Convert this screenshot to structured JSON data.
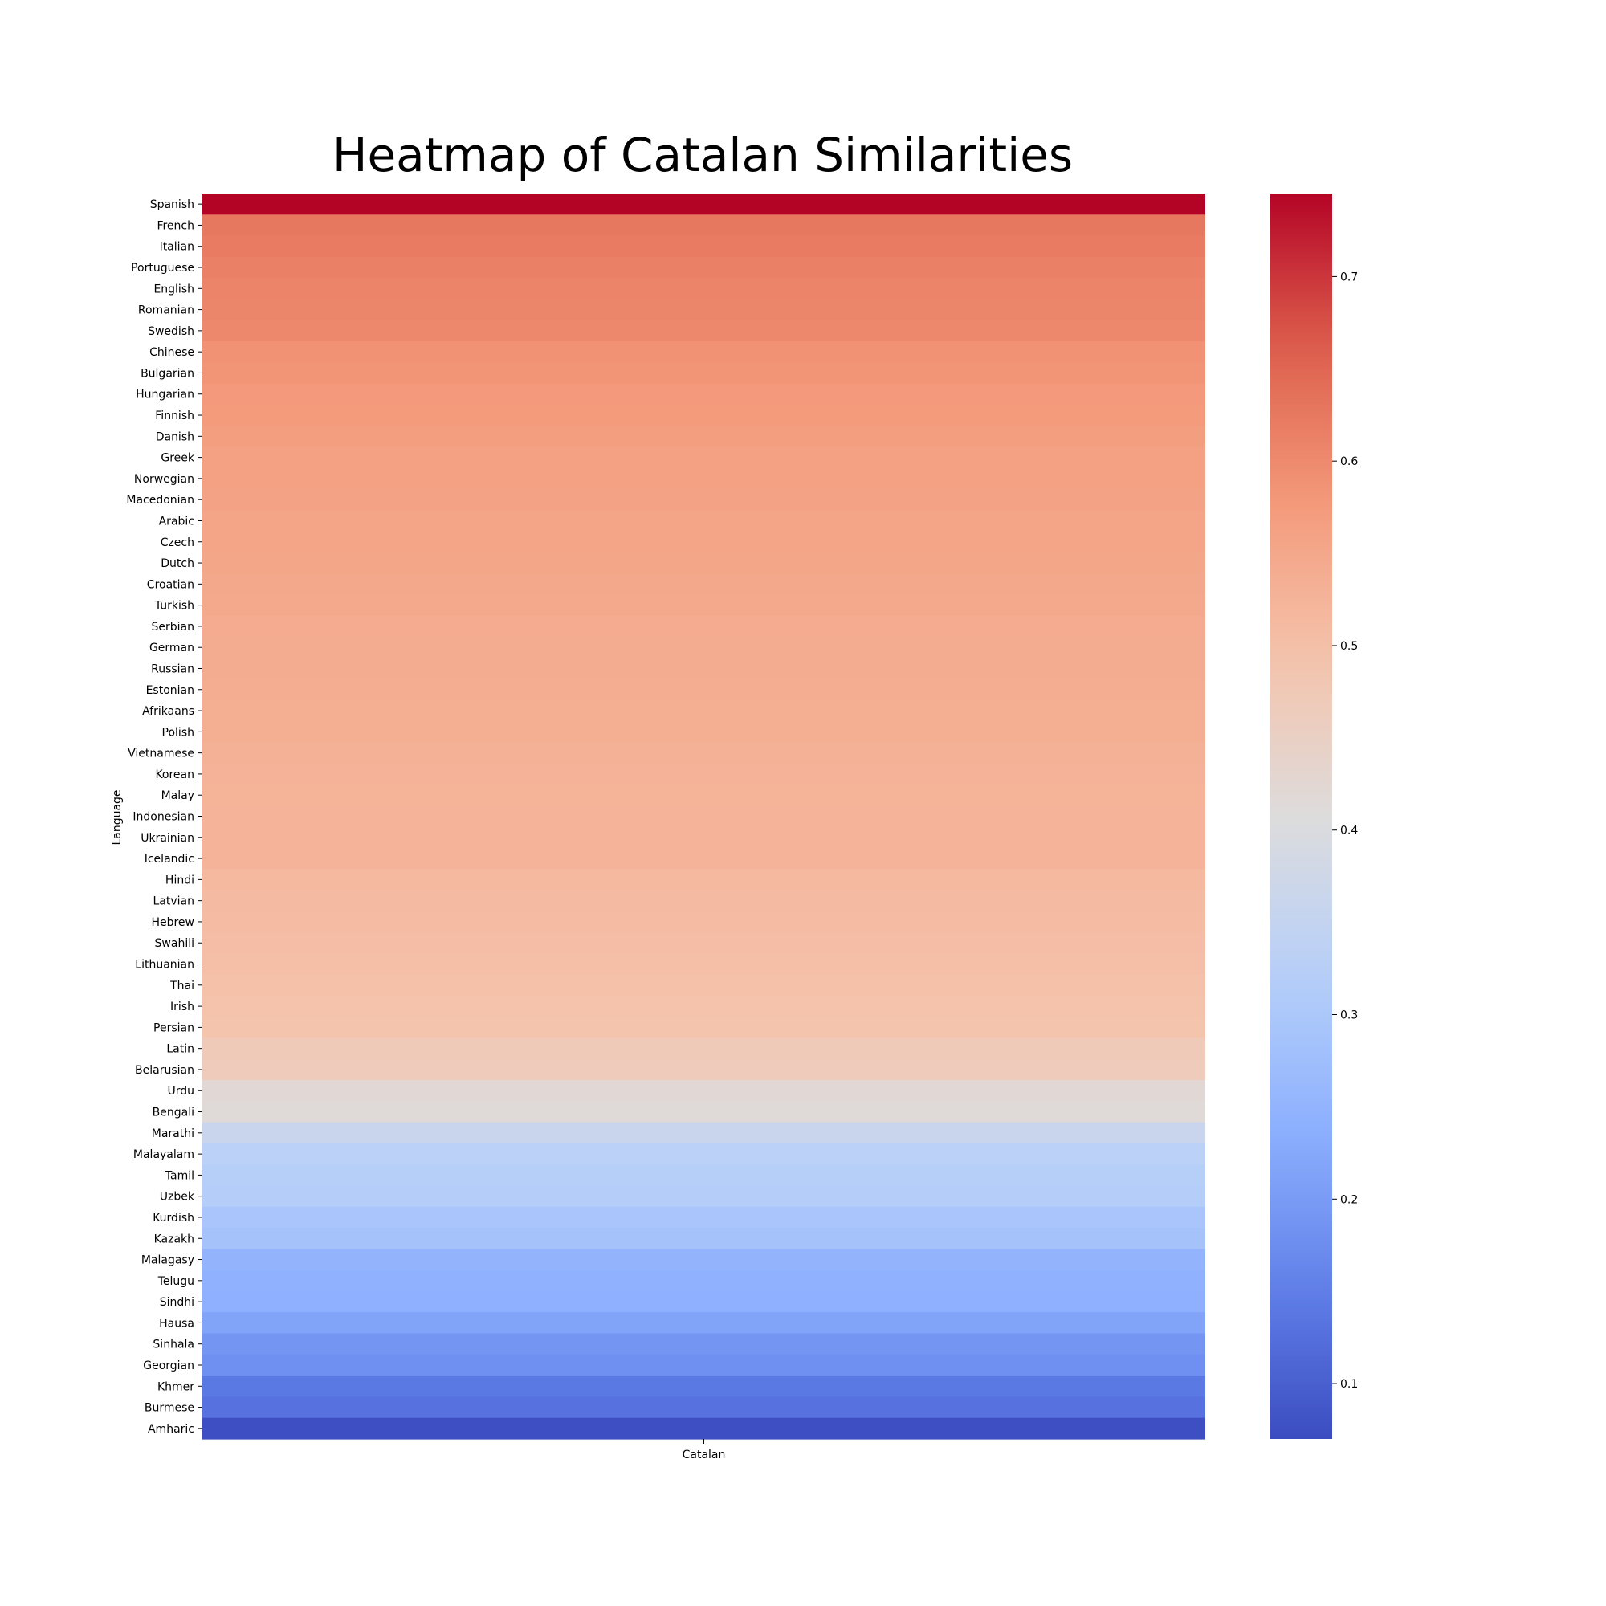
{
  "chart_data": {
    "type": "heatmap",
    "title": "Heatmap of Catalan Similarities",
    "xlabel": "",
    "ylabel": "Language",
    "columns": [
      "Catalan"
    ],
    "rows": [
      "Spanish",
      "French",
      "Italian",
      "Portuguese",
      "English",
      "Romanian",
      "Swedish",
      "Chinese",
      "Bulgarian",
      "Hungarian",
      "Finnish",
      "Danish",
      "Greek",
      "Norwegian",
      "Macedonian",
      "Arabic",
      "Czech",
      "Dutch",
      "Croatian",
      "Turkish",
      "Serbian",
      "German",
      "Russian",
      "Estonian",
      "Afrikaans",
      "Polish",
      "Vietnamese",
      "Korean",
      "Malay",
      "Indonesian",
      "Ukrainian",
      "Icelandic",
      "Hindi",
      "Latvian",
      "Hebrew",
      "Swahili",
      "Lithuanian",
      "Thai",
      "Irish",
      "Persian",
      "Latin",
      "Belarusian",
      "Urdu",
      "Bengali",
      "Marathi",
      "Malayalam",
      "Tamil",
      "Uzbek",
      "Kurdish",
      "Kazakh",
      "Malagasy",
      "Telugu",
      "Sindhi",
      "Hausa",
      "Sinhala",
      "Georgian",
      "Khmer",
      "Burmese",
      "Amharic"
    ],
    "values": [
      0.745,
      0.625,
      0.622,
      0.614,
      0.608,
      0.606,
      0.603,
      0.588,
      0.585,
      0.577,
      0.575,
      0.568,
      0.565,
      0.562,
      0.56,
      0.556,
      0.555,
      0.553,
      0.549,
      0.546,
      0.543,
      0.541,
      0.54,
      0.539,
      0.537,
      0.535,
      0.53,
      0.528,
      0.527,
      0.526,
      0.525,
      0.524,
      0.513,
      0.511,
      0.509,
      0.505,
      0.502,
      0.498,
      0.495,
      0.492,
      0.47,
      0.466,
      0.42,
      0.416,
      0.36,
      0.33,
      0.32,
      0.315,
      0.295,
      0.285,
      0.25,
      0.245,
      0.24,
      0.215,
      0.19,
      0.18,
      0.14,
      0.13,
      0.075
    ],
    "colorbar": {
      "range": [
        0.07,
        0.745
      ],
      "ticks": [
        0.1,
        0.2,
        0.3,
        0.4,
        0.5,
        0.6,
        0.7
      ],
      "tick_labels": [
        "0.1",
        "0.2",
        "0.3",
        "0.4",
        "0.5",
        "0.6",
        "0.7"
      ],
      "colormap": "coolwarm"
    },
    "grid": false,
    "legend": "colorbar-right"
  }
}
